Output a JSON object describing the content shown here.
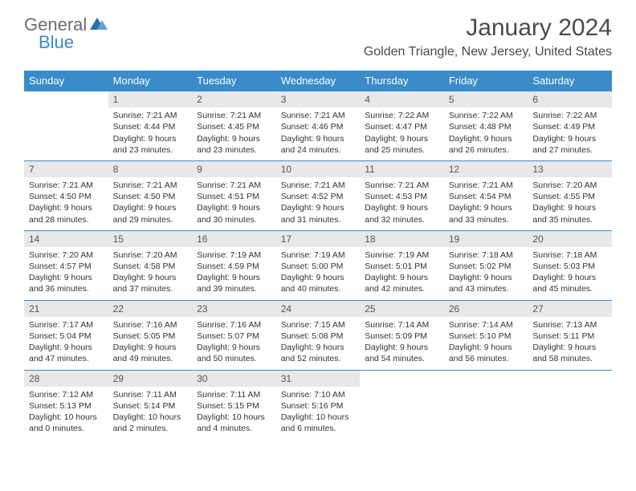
{
  "logo": {
    "general": "General",
    "blue": "Blue"
  },
  "title": "January 2024",
  "location": "Golden Triangle, New Jersey, United States",
  "styling": {
    "header_bg": "#3a8bc9",
    "header_text": "#ffffff",
    "daynum_bg": "#e8e8e8",
    "daynum_text": "#555555",
    "row_border": "#3a8bc9",
    "body_text": "#333333",
    "page_bg": "#ffffff",
    "title_color": "#4a4a4a",
    "logo_gray": "#6b6b6b",
    "logo_blue": "#3a8bc9",
    "month_fontsize": 30,
    "location_fontsize": 16,
    "header_fontsize": 13,
    "daynum_fontsize": 12,
    "cell_fontsize": 10.5
  },
  "days_of_week": [
    "Sunday",
    "Monday",
    "Tuesday",
    "Wednesday",
    "Thursday",
    "Friday",
    "Saturday"
  ],
  "weeks": [
    {
      "nums": [
        "",
        "1",
        "2",
        "3",
        "4",
        "5",
        "6"
      ],
      "info": [
        "",
        "Sunrise: 7:21 AM\nSunset: 4:44 PM\nDaylight: 9 hours and 23 minutes.",
        "Sunrise: 7:21 AM\nSunset: 4:45 PM\nDaylight: 9 hours and 23 minutes.",
        "Sunrise: 7:21 AM\nSunset: 4:46 PM\nDaylight: 9 hours and 24 minutes.",
        "Sunrise: 7:22 AM\nSunset: 4:47 PM\nDaylight: 9 hours and 25 minutes.",
        "Sunrise: 7:22 AM\nSunset: 4:48 PM\nDaylight: 9 hours and 26 minutes.",
        "Sunrise: 7:22 AM\nSunset: 4:49 PM\nDaylight: 9 hours and 27 minutes."
      ]
    },
    {
      "nums": [
        "7",
        "8",
        "9",
        "10",
        "11",
        "12",
        "13"
      ],
      "info": [
        "Sunrise: 7:21 AM\nSunset: 4:50 PM\nDaylight: 9 hours and 28 minutes.",
        "Sunrise: 7:21 AM\nSunset: 4:50 PM\nDaylight: 9 hours and 29 minutes.",
        "Sunrise: 7:21 AM\nSunset: 4:51 PM\nDaylight: 9 hours and 30 minutes.",
        "Sunrise: 7:21 AM\nSunset: 4:52 PM\nDaylight: 9 hours and 31 minutes.",
        "Sunrise: 7:21 AM\nSunset: 4:53 PM\nDaylight: 9 hours and 32 minutes.",
        "Sunrise: 7:21 AM\nSunset: 4:54 PM\nDaylight: 9 hours and 33 minutes.",
        "Sunrise: 7:20 AM\nSunset: 4:55 PM\nDaylight: 9 hours and 35 minutes."
      ]
    },
    {
      "nums": [
        "14",
        "15",
        "16",
        "17",
        "18",
        "19",
        "20"
      ],
      "info": [
        "Sunrise: 7:20 AM\nSunset: 4:57 PM\nDaylight: 9 hours and 36 minutes.",
        "Sunrise: 7:20 AM\nSunset: 4:58 PM\nDaylight: 9 hours and 37 minutes.",
        "Sunrise: 7:19 AM\nSunset: 4:59 PM\nDaylight: 9 hours and 39 minutes.",
        "Sunrise: 7:19 AM\nSunset: 5:00 PM\nDaylight: 9 hours and 40 minutes.",
        "Sunrise: 7:19 AM\nSunset: 5:01 PM\nDaylight: 9 hours and 42 minutes.",
        "Sunrise: 7:18 AM\nSunset: 5:02 PM\nDaylight: 9 hours and 43 minutes.",
        "Sunrise: 7:18 AM\nSunset: 5:03 PM\nDaylight: 9 hours and 45 minutes."
      ]
    },
    {
      "nums": [
        "21",
        "22",
        "23",
        "24",
        "25",
        "26",
        "27"
      ],
      "info": [
        "Sunrise: 7:17 AM\nSunset: 5:04 PM\nDaylight: 9 hours and 47 minutes.",
        "Sunrise: 7:16 AM\nSunset: 5:05 PM\nDaylight: 9 hours and 49 minutes.",
        "Sunrise: 7:16 AM\nSunset: 5:07 PM\nDaylight: 9 hours and 50 minutes.",
        "Sunrise: 7:15 AM\nSunset: 5:08 PM\nDaylight: 9 hours and 52 minutes.",
        "Sunrise: 7:14 AM\nSunset: 5:09 PM\nDaylight: 9 hours and 54 minutes.",
        "Sunrise: 7:14 AM\nSunset: 5:10 PM\nDaylight: 9 hours and 56 minutes.",
        "Sunrise: 7:13 AM\nSunset: 5:11 PM\nDaylight: 9 hours and 58 minutes."
      ]
    },
    {
      "nums": [
        "28",
        "29",
        "30",
        "31",
        "",
        "",
        ""
      ],
      "info": [
        "Sunrise: 7:12 AM\nSunset: 5:13 PM\nDaylight: 10 hours and 0 minutes.",
        "Sunrise: 7:11 AM\nSunset: 5:14 PM\nDaylight: 10 hours and 2 minutes.",
        "Sunrise: 7:11 AM\nSunset: 5:15 PM\nDaylight: 10 hours and 4 minutes.",
        "Sunrise: 7:10 AM\nSunset: 5:16 PM\nDaylight: 10 hours and 6 minutes.",
        "",
        "",
        ""
      ]
    }
  ]
}
